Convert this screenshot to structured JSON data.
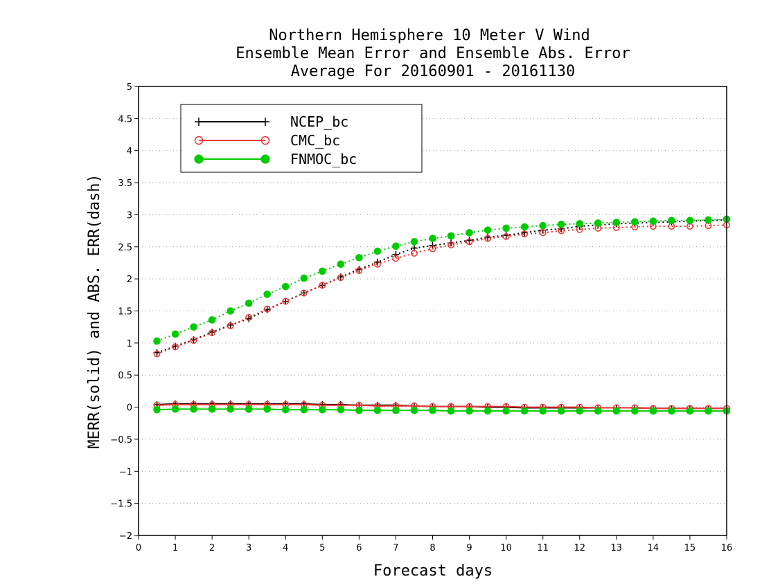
{
  "chart_data": {
    "type": "line",
    "title": [
      "Northern Hemisphere 10 Meter V Wind",
      "Ensemble Mean Error and Ensemble Abs. Error",
      "Average For 20160901 - 20161130"
    ],
    "xlabel": "Forecast days",
    "ylabel": "MERR(solid) and ABS. ERR(dash)",
    "xlim": [
      0,
      16
    ],
    "ylim": [
      -2,
      5
    ],
    "xticks": [
      0,
      1,
      2,
      3,
      4,
      5,
      6,
      7,
      8,
      9,
      10,
      11,
      12,
      13,
      14,
      15,
      16
    ],
    "yticks": [
      -2,
      -1.5,
      -1,
      -0.5,
      0,
      0.5,
      1,
      1.5,
      2,
      2.5,
      3,
      3.5,
      4,
      4.5,
      5
    ],
    "grid": "horizontal dotted",
    "legend_position": "top-left",
    "x": [
      0.5,
      1,
      1.5,
      2,
      2.5,
      3,
      3.5,
      4,
      4.5,
      5,
      5.5,
      6,
      6.5,
      7,
      7.5,
      8,
      8.5,
      9,
      9.5,
      10,
      10.5,
      11,
      11.5,
      12,
      12.5,
      13,
      13.5,
      14,
      14.5,
      15,
      15.5,
      16
    ],
    "series": [
      {
        "name": "NCEP_bc",
        "color": "#000000",
        "marker": "plus",
        "merr": [
          0.04,
          0.05,
          0.05,
          0.05,
          0.05,
          0.05,
          0.05,
          0.05,
          0.05,
          0.04,
          0.04,
          0.03,
          0.03,
          0.03,
          0.02,
          0.01,
          0.01,
          0.01,
          0.0,
          0.0,
          -0.01,
          -0.01,
          -0.01,
          -0.01,
          -0.01,
          -0.01,
          -0.01,
          -0.02,
          -0.02,
          -0.02,
          -0.02,
          -0.02
        ],
        "abs_err": [
          0.85,
          0.95,
          1.05,
          1.17,
          1.28,
          1.38,
          1.52,
          1.65,
          1.78,
          1.9,
          2.03,
          2.15,
          2.26,
          2.38,
          2.48,
          2.52,
          2.56,
          2.6,
          2.65,
          2.68,
          2.72,
          2.76,
          2.78,
          2.82,
          2.84,
          2.86,
          2.87,
          2.88,
          2.89,
          2.9,
          2.91,
          2.92
        ]
      },
      {
        "name": "CMC_bc",
        "color": "#ee3333",
        "marker": "open-circle",
        "merr": [
          0.03,
          0.04,
          0.04,
          0.04,
          0.04,
          0.04,
          0.04,
          0.04,
          0.04,
          0.03,
          0.03,
          0.03,
          0.02,
          0.02,
          0.02,
          0.01,
          0.01,
          0.01,
          0.01,
          0.01,
          0.0,
          0.0,
          0.0,
          0.0,
          -0.01,
          -0.01,
          -0.01,
          -0.02,
          -0.02,
          -0.02,
          -0.02,
          -0.02
        ],
        "abs_err": [
          0.83,
          0.94,
          1.04,
          1.16,
          1.27,
          1.4,
          1.53,
          1.65,
          1.78,
          1.9,
          2.02,
          2.13,
          2.23,
          2.32,
          2.4,
          2.47,
          2.53,
          2.58,
          2.63,
          2.66,
          2.7,
          2.72,
          2.75,
          2.77,
          2.79,
          2.8,
          2.81,
          2.82,
          2.82,
          2.82,
          2.83,
          2.84
        ]
      },
      {
        "name": "FNMOC_bc",
        "color": "#00cc00",
        "marker": "filled-circle",
        "merr": [
          -0.04,
          -0.03,
          -0.03,
          -0.03,
          -0.03,
          -0.03,
          -0.03,
          -0.04,
          -0.04,
          -0.04,
          -0.04,
          -0.05,
          -0.05,
          -0.05,
          -0.05,
          -0.05,
          -0.06,
          -0.06,
          -0.06,
          -0.06,
          -0.06,
          -0.06,
          -0.06,
          -0.06,
          -0.06,
          -0.06,
          -0.06,
          -0.06,
          -0.06,
          -0.06,
          -0.06,
          -0.06
        ],
        "abs_err": [
          1.03,
          1.14,
          1.25,
          1.36,
          1.5,
          1.62,
          1.76,
          1.88,
          2.01,
          2.12,
          2.23,
          2.33,
          2.43,
          2.51,
          2.58,
          2.63,
          2.67,
          2.72,
          2.76,
          2.79,
          2.81,
          2.83,
          2.85,
          2.86,
          2.87,
          2.88,
          2.89,
          2.9,
          2.91,
          2.91,
          2.92,
          2.93
        ]
      }
    ]
  }
}
